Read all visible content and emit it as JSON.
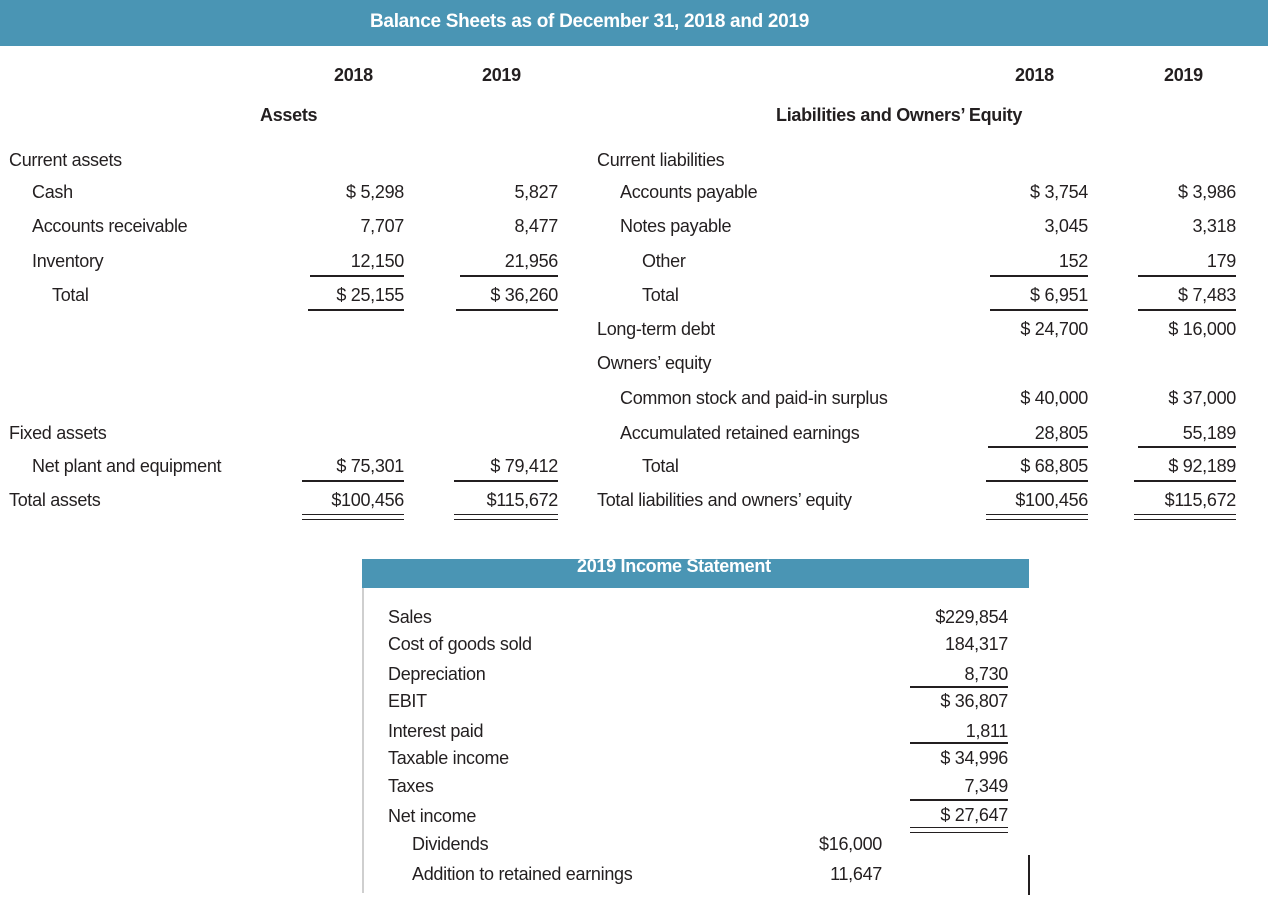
{
  "balance_sheet": {
    "title": "Balance Sheets as of December 31, 2018 and 2019",
    "years": [
      "2018",
      "2019"
    ],
    "assets_heading": "Assets",
    "liab_heading": "Liabilities and Owners’ Equity",
    "assets": {
      "current_label": "Current assets",
      "cash": {
        "label": "Cash",
        "v2018": "$ 5,298",
        "v2019": "5,827"
      },
      "ar": {
        "label": "Accounts receivable",
        "v2018": "7,707",
        "v2019": "8,477"
      },
      "inventory": {
        "label": "Inventory",
        "v2018": "12,150",
        "v2019": "21,956"
      },
      "total": {
        "label": "Total",
        "v2018": "$ 25,155",
        "v2019": "$ 36,260"
      },
      "fixed_label": "Fixed assets",
      "net_plant": {
        "label": "Net plant and equipment",
        "v2018": "$ 75,301",
        "v2019": "$ 79,412"
      },
      "total_assets": {
        "label": "Total assets",
        "v2018": "$100,456",
        "v2019": "$115,672"
      }
    },
    "liabilities": {
      "current_label": "Current liabilities",
      "ap": {
        "label": "Accounts payable",
        "v2018": "$ 3,754",
        "v2019": "$ 3,986"
      },
      "np": {
        "label": "Notes payable",
        "v2018": "3,045",
        "v2019": "3,318"
      },
      "other": {
        "label": "Other",
        "v2018": "152",
        "v2019": "179"
      },
      "total": {
        "label": "Total",
        "v2018": "$ 6,951",
        "v2019": "$ 7,483"
      },
      "ltd": {
        "label": "Long-term debt",
        "v2018": "$ 24,700",
        "v2019": "$ 16,000"
      },
      "oe_label": "Owners’ equity",
      "common": {
        "label": "Common stock and paid-in surplus",
        "v2018": "$ 40,000",
        "v2019": "$ 37,000"
      },
      "are": {
        "label": "Accumulated retained earnings",
        "v2018": "28,805",
        "v2019": "55,189"
      },
      "oe_total": {
        "label": "Total",
        "v2018": "$ 68,805",
        "v2019": "$ 92,189"
      },
      "total_le": {
        "label": "Total liabilities and owners’ equity",
        "v2018": "$100,456",
        "v2019": "$115,672"
      }
    }
  },
  "income_statement": {
    "title": "2019 Income Statement",
    "rows": {
      "sales": {
        "label": "Sales",
        "value": "$229,854"
      },
      "cogs": {
        "label": "Cost of goods sold",
        "value": "184,317"
      },
      "dep": {
        "label": "Depreciation",
        "value": "8,730"
      },
      "ebit": {
        "label": "EBIT",
        "value": "$ 36,807"
      },
      "interest": {
        "label": "Interest paid",
        "value": "1,811"
      },
      "taxable": {
        "label": "Taxable income",
        "value": "$ 34,996"
      },
      "taxes": {
        "label": "Taxes",
        "value": "7,349"
      },
      "net": {
        "label": "Net income",
        "value": "$ 27,647"
      },
      "dividends": {
        "label": "Dividends",
        "value": "$16,000"
      },
      "addition": {
        "label": "Addition to retained earnings",
        "value": "11,647"
      }
    }
  },
  "colors": {
    "band": "#4a95b4",
    "text": "#231f20"
  }
}
